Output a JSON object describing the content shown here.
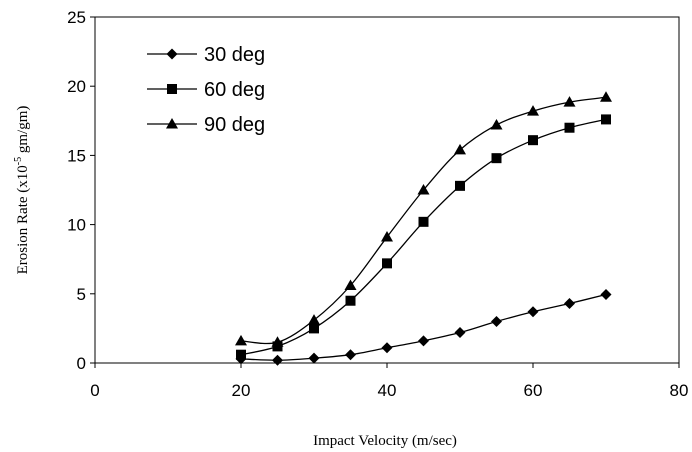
{
  "chart_data": {
    "type": "line",
    "title": "",
    "xlabel": "Impact Velocity (m/sec)",
    "ylabel_prefix": "Erosion Rate (x10",
    "ylabel_exponent": "-5",
    "ylabel_suffix": " gm/gm)",
    "xlim": [
      0,
      80
    ],
    "ylim": [
      0,
      25
    ],
    "xticks": [
      "0",
      "20",
      "40",
      "60",
      "80"
    ],
    "yticks": [
      "0",
      "5",
      "10",
      "15",
      "20",
      "25"
    ],
    "grid": false,
    "legend_position": "top-left",
    "x": [
      20,
      25,
      30,
      35,
      40,
      45,
      50,
      55,
      60,
      65,
      70
    ],
    "series": [
      {
        "name": "30 deg",
        "marker": "diamond",
        "values": [
          0.3,
          0.2,
          0.35,
          0.6,
          1.1,
          1.6,
          2.2,
          3.0,
          3.7,
          4.3,
          4.95
        ]
      },
      {
        "name": "60 deg",
        "marker": "square",
        "values": [
          0.6,
          1.2,
          2.5,
          4.5,
          7.2,
          10.2,
          12.8,
          14.8,
          16.1,
          17.0,
          17.6
        ]
      },
      {
        "name": "90 deg",
        "marker": "triangle",
        "values": [
          1.6,
          1.5,
          3.1,
          5.6,
          9.1,
          12.5,
          15.4,
          17.2,
          18.2,
          18.85,
          19.2
        ]
      }
    ]
  }
}
